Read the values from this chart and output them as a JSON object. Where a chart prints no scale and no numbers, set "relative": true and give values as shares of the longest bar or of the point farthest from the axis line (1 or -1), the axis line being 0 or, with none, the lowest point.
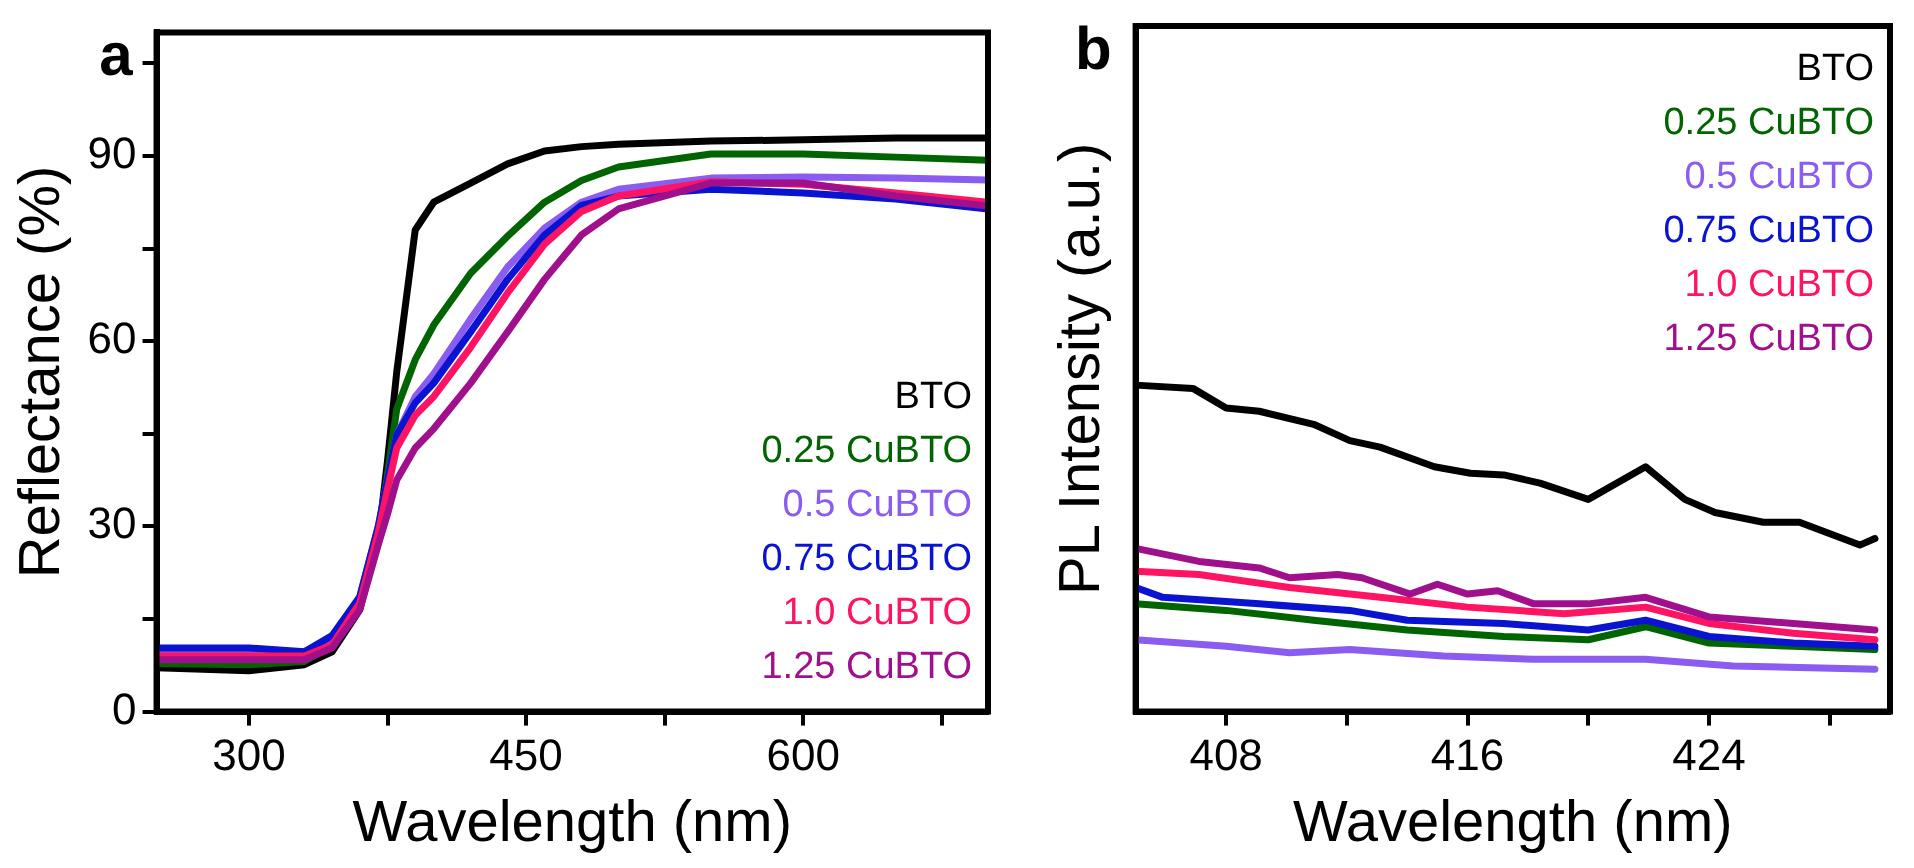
{
  "chart_data": [
    {
      "type": "line",
      "title": "a",
      "xlabel": "Wavelength (nm)",
      "ylabel": "Reflectance (%)",
      "xlim": [
        250,
        700
      ],
      "ylim": [
        0,
        110
      ],
      "xticks": [
        300,
        {
          "value": 375,
          "label": null
        },
        450,
        {
          "value": 525,
          "label": null
        },
        600,
        {
          "value": 675,
          "label": null
        }
      ],
      "yticks": [
        0,
        {
          "value": 15,
          "label": null
        },
        30,
        {
          "value": 45,
          "label": null
        },
        60,
        {
          "value": 75,
          "label": null
        },
        90,
        {
          "value": 105,
          "label": null
        }
      ],
      "legend": "bottom right",
      "grid": false,
      "marker": "none",
      "line_style": "solid",
      "x": [
        250,
        300,
        330,
        345,
        360,
        370,
        375,
        380,
        390,
        400,
        420,
        440,
        460,
        480,
        500,
        550,
        600,
        650,
        700
      ],
      "series": [
        {
          "name": "BTO",
          "color": "#000000",
          "values": [
            7.1,
            6.6,
            7.6,
            9.7,
            16.5,
            28,
            40.6,
            55,
            78,
            82.5,
            85.6,
            88.7,
            90.8,
            91.5,
            91.9,
            92.4,
            92.6,
            92.9,
            92.9
          ]
        },
        {
          "name": "0.25 CuBTO",
          "color": "#006400",
          "values": [
            7.8,
            7.6,
            8.1,
            10.8,
            17.6,
            28,
            38.5,
            49,
            57,
            62.6,
            71,
            77,
            82.5,
            86,
            88.2,
            90.3,
            90.3,
            89.8,
            89.3
          ]
        },
        {
          "name": "0.5 CuBTO",
          "color": "#8a5cf0",
          "values": [
            9.7,
            9.7,
            9.7,
            11.8,
            18.6,
            30,
            37.5,
            44.8,
            51,
            54.7,
            63.6,
            72,
            78.3,
            82.5,
            84.6,
            86.4,
            86.6,
            86.4,
            86.1
          ]
        },
        {
          "name": "0.75 CuBTO",
          "color": "#0a14d0",
          "values": [
            10.3,
            10.3,
            9.7,
            12.3,
            18.6,
            30,
            37.5,
            44.8,
            50,
            53.2,
            61.5,
            70,
            77.2,
            82,
            83.5,
            84.6,
            84,
            83,
            81.4
          ]
        },
        {
          "name": "1.0 CuBTO",
          "color": "#ff1464",
          "values": [
            9.0,
            9.0,
            9.0,
            10.8,
            17.6,
            29,
            36,
            42.7,
            48,
            51,
            59,
            67.8,
            75.7,
            81,
            83.5,
            85.8,
            85.4,
            84,
            82.5
          ]
        },
        {
          "name": "1.25 CuBTO",
          "color": "#a0108c",
          "values": [
            8.4,
            8.4,
            8.4,
            10.3,
            16.5,
            27,
            32,
            37.5,
            42.7,
            45.8,
            53.2,
            61.5,
            70,
            77.2,
            81.4,
            85.6,
            85.6,
            83.5,
            81.9
          ]
        }
      ]
    },
    {
      "type": "line",
      "title": "b",
      "xlabel": "Wavelength (nm)",
      "ylabel": "PL Intensity (a.u.)",
      "relative": true,
      "xlim": [
        405,
        430
      ],
      "xticks": [
        408,
        {
          "value": 412,
          "label": null
        },
        416,
        {
          "value": 420,
          "label": null
        },
        424,
        {
          "value": 428,
          "label": null
        }
      ],
      "legend": "top right",
      "grid": false,
      "marker": "none",
      "line_style": "solid",
      "series": [
        {
          "name": "BTO",
          "color": "#000000",
          "x": [
            405,
            406.9,
            408,
            409.1,
            410.9,
            412.1,
            413.1,
            414.9,
            416.1,
            417.2,
            418.4,
            420,
            421.9,
            423.2,
            424.2,
            425.8,
            427,
            429,
            429.5
          ],
          "values": [
            1.0,
            0.99,
            0.93,
            0.92,
            0.88,
            0.83,
            0.81,
            0.75,
            0.73,
            0.725,
            0.7,
            0.65,
            0.75,
            0.65,
            0.61,
            0.58,
            0.58,
            0.51,
            0.53
          ]
        },
        {
          "name": "0.25 CuBTO",
          "color": "#006400",
          "x": [
            405,
            408,
            410.9,
            414,
            417.2,
            420,
            421.9,
            424,
            426.8,
            429.5
          ],
          "values": [
            0.33,
            0.31,
            0.28,
            0.25,
            0.23,
            0.22,
            0.26,
            0.21,
            0.2,
            0.19
          ]
        },
        {
          "name": "0.5 CuBTO",
          "color": "#8a5cf0",
          "x": [
            405,
            408,
            410.1,
            412.1,
            415.2,
            418.2,
            421.9,
            424.8,
            429.5
          ],
          "values": [
            0.22,
            0.2,
            0.18,
            0.19,
            0.17,
            0.16,
            0.16,
            0.14,
            0.13
          ]
        },
        {
          "name": "0.75 CuBTO",
          "color": "#0a14d0",
          "x": [
            405,
            405.9,
            409.1,
            412.1,
            414,
            417.2,
            420,
            421.9,
            424,
            426.8,
            429.5
          ],
          "values": [
            0.38,
            0.35,
            0.33,
            0.31,
            0.28,
            0.27,
            0.25,
            0.28,
            0.23,
            0.21,
            0.2
          ]
        },
        {
          "name": "1.0 CuBTO",
          "color": "#ff1464",
          "x": [
            405,
            407.1,
            410.1,
            413.1,
            416,
            419.2,
            421.9,
            424,
            426.8,
            429.5
          ],
          "values": [
            0.43,
            0.42,
            0.38,
            0.35,
            0.32,
            0.3,
            0.32,
            0.27,
            0.24,
            0.22
          ]
        },
        {
          "name": "1.25 CuBTO",
          "color": "#a0108c",
          "x": [
            405,
            407.1,
            409.1,
            410.1,
            411.7,
            412.5,
            414.1,
            415,
            416,
            417,
            418.2,
            420,
            421.9,
            424,
            426.8,
            429.5
          ],
          "values": [
            0.5,
            0.46,
            0.44,
            0.41,
            0.42,
            0.41,
            0.36,
            0.39,
            0.36,
            0.37,
            0.33,
            0.33,
            0.35,
            0.29,
            0.27,
            0.25
          ]
        }
      ]
    }
  ]
}
